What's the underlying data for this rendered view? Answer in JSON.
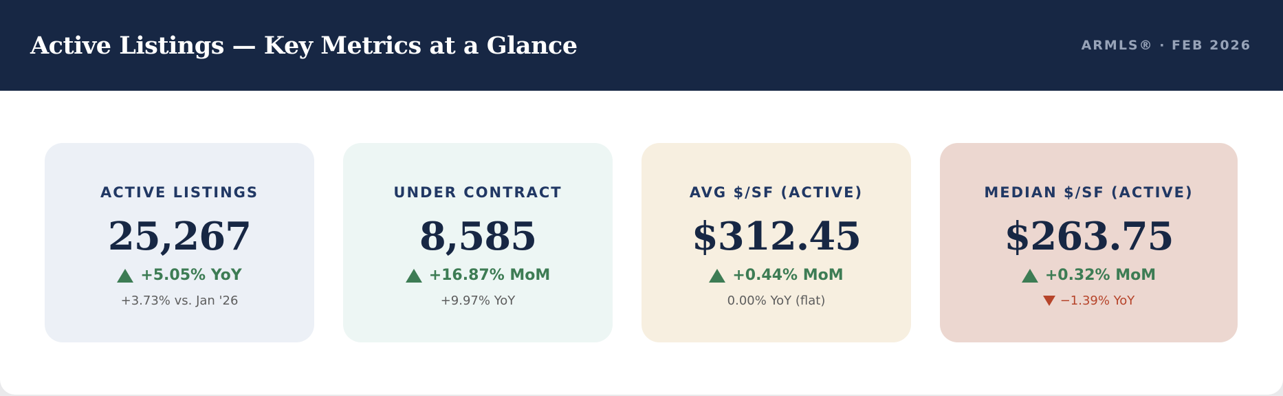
{
  "header": {
    "title": "Active Listings — Key Metrics at a Glance",
    "meta": "ARMLS® · FEB 2026"
  },
  "cards": [
    {
      "label": "ACTIVE LISTINGS",
      "value": "25,267",
      "primary_change": "+5.05% YoY",
      "primary_direction": "up",
      "secondary_change": "+3.73% vs. Jan '26",
      "secondary_direction": "neutral",
      "background": "#ecf0f6"
    },
    {
      "label": "UNDER CONTRACT",
      "value": "8,585",
      "primary_change": "+16.87% MoM",
      "primary_direction": "up",
      "secondary_change": "+9.97% YoY",
      "secondary_direction": "neutral",
      "background": "#edf6f4"
    },
    {
      "label": "AVG $/SF (ACTIVE)",
      "value": "$312.45",
      "primary_change": "+0.44% MoM",
      "primary_direction": "up",
      "secondary_change": "0.00% YoY (flat)",
      "secondary_direction": "neutral",
      "background": "#f7efe0"
    },
    {
      "label": "MEDIAN $/SF (ACTIVE)",
      "value": "$263.75",
      "primary_change": "+0.32% MoM",
      "primary_direction": "up",
      "secondary_change": "−1.39% YoY",
      "secondary_direction": "down",
      "background": "#ecd7d0"
    }
  ],
  "colors": {
    "header_bg": "#172744",
    "positive": "#3d7c54",
    "negative": "#b6442a",
    "label": "#213864"
  },
  "icons": {
    "up": "triangle-up-icon",
    "down": "triangle-down-icon"
  }
}
